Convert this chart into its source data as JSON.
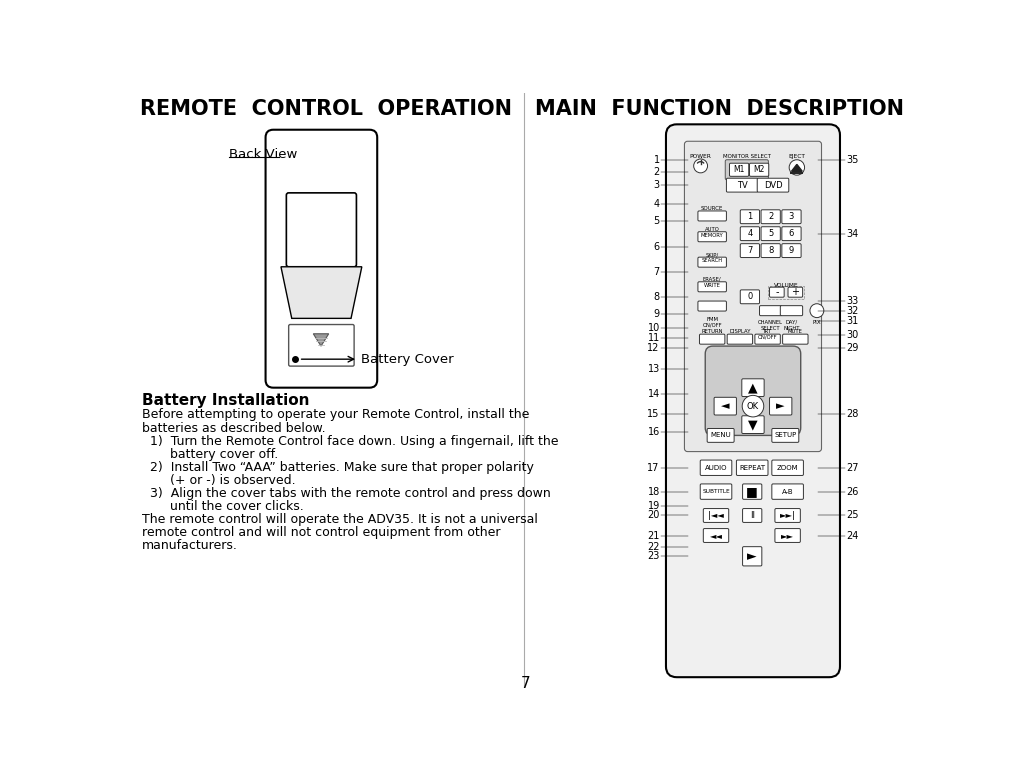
{
  "title_left": "REMOTE  CONTROL  OPERATION",
  "title_right": "MAIN  FUNCTION  DESCRIPTION",
  "back_view_label": "Back View",
  "battery_cover_label": "Battery Cover",
  "battery_install_title": "Battery Installation",
  "battery_install_text": [
    "Before attempting to operate your Remote Control, install the",
    "batteries as described below.",
    "  1)  Turn the Remote Control face down. Using a fingernail, lift the",
    "       battery cover off.",
    "  2)  Install Two “AAA” batteries. Make sure that proper polarity",
    "       (+ or -) is observed.",
    "  3)  Align the cover tabs with the remote control and press down",
    "       until the cover clicks.",
    "The remote control will operate the ADV35. It is not a universal",
    "remote control and will not control equipment from other",
    "manufacturers."
  ],
  "page_number": "7",
  "left_numbers": [
    "1",
    "2",
    "3",
    "4",
    "5",
    "6",
    "7",
    "8",
    "9",
    "10",
    "11",
    "12",
    "13",
    "14",
    "15",
    "16",
    "17",
    "18",
    "19",
    "20",
    "21",
    "22",
    "23"
  ],
  "right_numbers": [
    "35",
    "34",
    "33",
    "32",
    "31",
    "30",
    "29",
    "28",
    "27",
    "26",
    "25",
    "24"
  ],
  "bg_color": "#ffffff",
  "text_color": "#000000"
}
